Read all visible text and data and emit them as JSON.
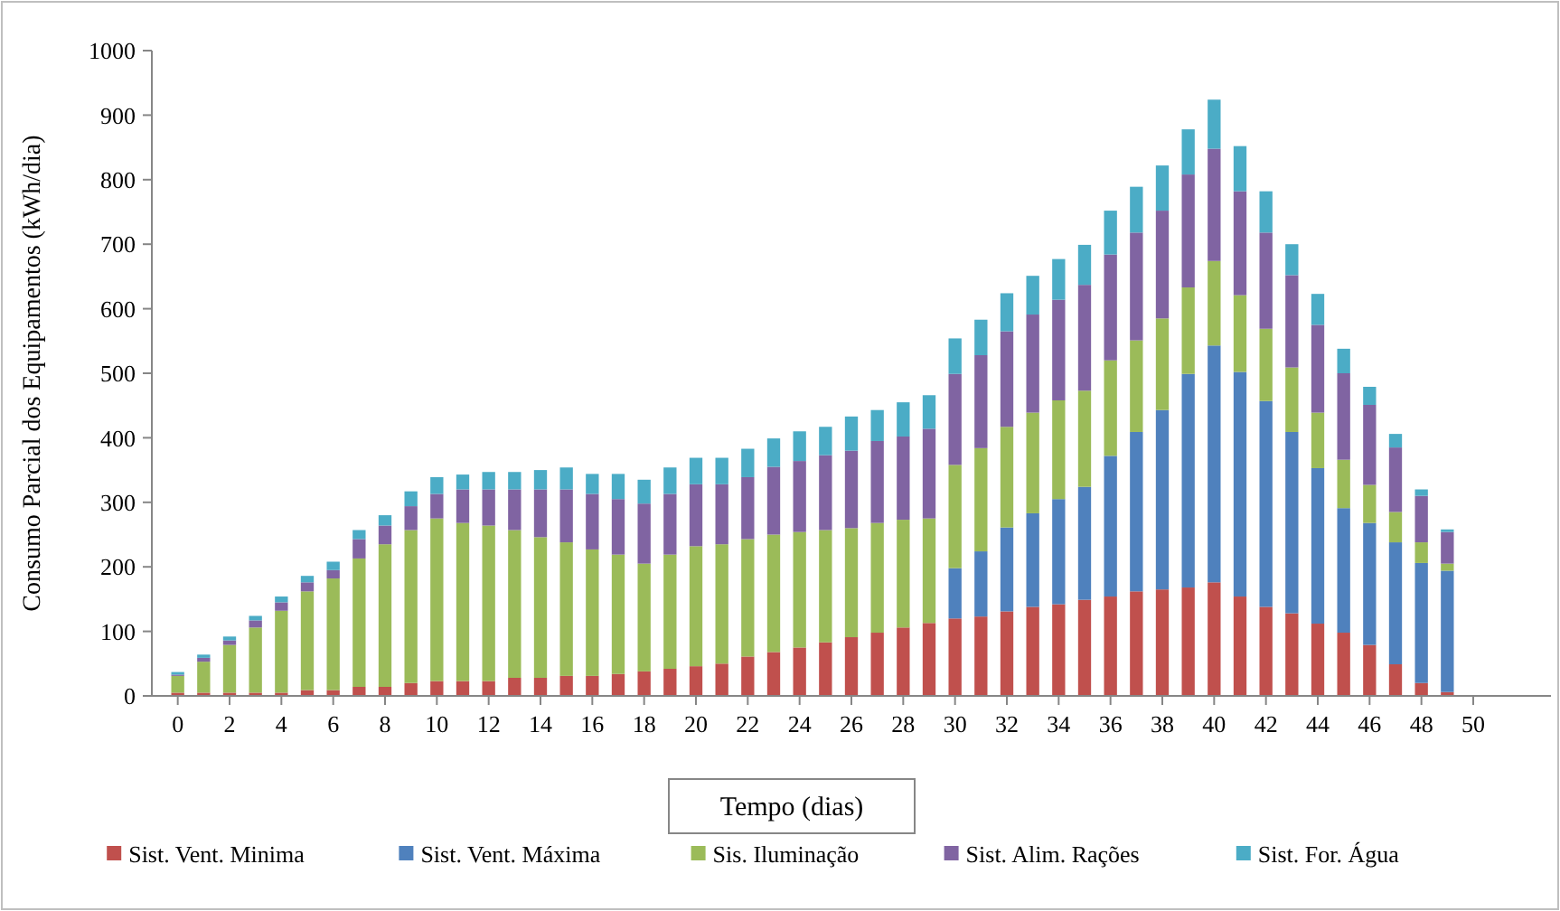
{
  "chart_data": {
    "type": "bar",
    "stacked": true,
    "xlabel": "Tempo (dias)",
    "ylabel": "Consumo Parcial dos Equipamentos  (kWh/dia)",
    "x": [
      0,
      1,
      2,
      3,
      4,
      5,
      6,
      7,
      8,
      9,
      10,
      11,
      12,
      13,
      14,
      15,
      16,
      17,
      18,
      19,
      20,
      21,
      22,
      23,
      24,
      25,
      26,
      27,
      28,
      29,
      30,
      31,
      32,
      33,
      34,
      35,
      36,
      37,
      38,
      39,
      40,
      41,
      42,
      43,
      44,
      45,
      46,
      47,
      48,
      49
    ],
    "xlim": [
      -1,
      53
    ],
    "xticks": [
      0,
      2,
      4,
      6,
      8,
      10,
      12,
      14,
      16,
      18,
      20,
      22,
      24,
      26,
      28,
      30,
      32,
      34,
      36,
      38,
      40,
      42,
      44,
      46,
      48,
      50
    ],
    "ylim": [
      0,
      1000
    ],
    "yticks": [
      0,
      100,
      200,
      300,
      400,
      500,
      600,
      700,
      800,
      900,
      1000
    ],
    "grid": false,
    "legend": "bottom",
    "series": [
      {
        "name": "Sist. Vent. Minima",
        "color": "#c0504d",
        "values": [
          5,
          5,
          5,
          5,
          5,
          9,
          9,
          14,
          14,
          20,
          23,
          23,
          23,
          28,
          28,
          31,
          31,
          34,
          38,
          42,
          46,
          50,
          61,
          68,
          75,
          83,
          91,
          98,
          106,
          113,
          120,
          123,
          131,
          138,
          142,
          149,
          154,
          162,
          165,
          168,
          176,
          154,
          138,
          128,
          112,
          98,
          79,
          49,
          20,
          6
        ]
      },
      {
        "name": "Sist. Vent. Máxima",
        "color": "#4f81bd",
        "values": [
          null,
          null,
          null,
          null,
          null,
          null,
          null,
          null,
          null,
          null,
          null,
          null,
          null,
          null,
          null,
          null,
          null,
          null,
          null,
          null,
          null,
          null,
          null,
          null,
          null,
          null,
          null,
          null,
          null,
          null,
          78,
          101,
          130,
          145,
          163,
          175,
          218,
          247,
          278,
          331,
          367,
          348,
          319,
          281,
          241,
          193,
          189,
          189,
          186,
          188
        ]
      },
      {
        "name": "Sis. Iluminação",
        "color": "#9bbb59",
        "values": [
          26,
          48,
          74,
          101,
          127,
          153,
          173,
          199,
          221,
          237,
          252,
          245,
          241,
          229,
          218,
          207,
          196,
          185,
          167,
          177,
          186,
          185,
          182,
          182,
          179,
          174,
          169,
          170,
          167,
          162,
          160,
          160,
          156,
          156,
          153,
          149,
          148,
          142,
          142,
          134,
          131,
          119,
          112,
          100,
          86,
          75,
          59,
          47,
          32,
          11
        ]
      },
      {
        "name": "Sist. Alim. Rações",
        "color": "#8064a2",
        "values": [
          2,
          6,
          7,
          11,
          13,
          14,
          13,
          30,
          29,
          37,
          38,
          52,
          56,
          63,
          74,
          82,
          86,
          86,
          93,
          94,
          96,
          93,
          96,
          105,
          110,
          116,
          120,
          127,
          129,
          139,
          141,
          144,
          148,
          152,
          156,
          164,
          164,
          167,
          167,
          175,
          174,
          161,
          149,
          143,
          136,
          134,
          124,
          100,
          72,
          49
        ]
      },
      {
        "name": "Sist. For. Água",
        "color": "#4bacc6",
        "values": [
          4,
          5,
          6,
          7,
          9,
          10,
          13,
          14,
          16,
          23,
          26,
          23,
          27,
          27,
          30,
          34,
          31,
          39,
          37,
          41,
          41,
          41,
          44,
          44,
          46,
          44,
          53,
          48,
          53,
          52,
          55,
          55,
          59,
          60,
          63,
          62,
          68,
          71,
          70,
          70,
          76,
          70,
          64,
          48,
          48,
          38,
          28,
          21,
          10,
          4
        ]
      }
    ]
  }
}
